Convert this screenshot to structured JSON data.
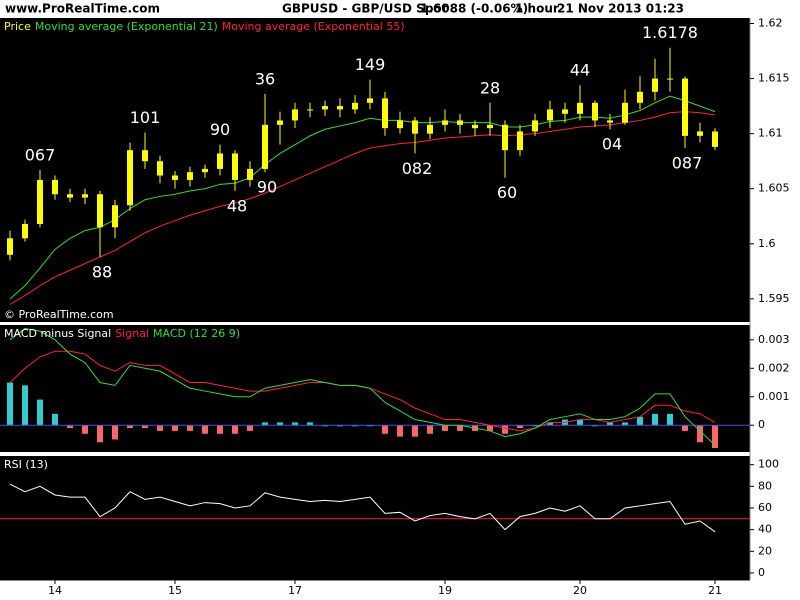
{
  "header": {
    "site": "www.ProRealTime.com",
    "instrument": "GBPUSD - GBP/USD Spot",
    "quote": "1.6088 (-0.06%)",
    "timeframe": "1 hour",
    "timestamp": "21 Nov 2013 01:23"
  },
  "watermark": "© ProRealTime.com",
  "chart_data": [
    {
      "type": "candlestick",
      "categories": [
        null,
        null,
        null,
        "14",
        null,
        null,
        null,
        null,
        null,
        null,
        null,
        "15",
        null,
        null,
        null,
        null,
        null,
        null,
        null,
        "17",
        null,
        null,
        null,
        null,
        null,
        null,
        null,
        null,
        null,
        "19",
        null,
        null,
        null,
        null,
        null,
        null,
        null,
        null,
        "20",
        null,
        null,
        null,
        null,
        null,
        null,
        null,
        null,
        "21"
      ],
      "series": [
        {
          "name": "Price",
          "color": "#ffff00",
          "open": [
            1.599,
            1.6005,
            1.6018,
            1.6058,
            1.6045,
            1.6042,
            1.6045,
            1.6015,
            1.6035,
            1.6085,
            1.6075,
            1.6062,
            1.6058,
            1.6065,
            1.6068,
            1.6082,
            1.6058,
            1.6068,
            1.6108,
            1.6112,
            1.6122,
            1.6122,
            1.6125,
            1.6122,
            1.6128,
            1.6132,
            1.6105,
            1.6112,
            1.61,
            1.6108,
            1.6112,
            1.6108,
            1.6105,
            1.6108,
            1.6085,
            1.6102,
            1.6112,
            1.6122,
            1.6118,
            1.6128,
            1.6112,
            1.611,
            1.6128,
            1.6138,
            1.615,
            1.615,
            1.6098,
            1.6102
          ],
          "high": [
            1.6012,
            1.6022,
            1.6067,
            1.6062,
            1.605,
            1.605,
            1.6048,
            1.604,
            1.6092,
            1.6101,
            1.608,
            1.6066,
            1.607,
            1.6072,
            1.609,
            1.6085,
            1.6075,
            1.6136,
            1.612,
            1.6128,
            1.6128,
            1.613,
            1.6132,
            1.6135,
            1.6149,
            1.6138,
            1.612,
            1.6115,
            1.6115,
            1.6122,
            1.6118,
            1.6112,
            1.6128,
            1.6112,
            1.6108,
            1.6118,
            1.613,
            1.6128,
            1.6144,
            1.613,
            1.6118,
            1.614,
            1.6152,
            1.6168,
            1.6178,
            1.6152,
            1.611,
            1.6105
          ],
          "low": [
            1.5985,
            1.6002,
            1.6015,
            1.604,
            1.6038,
            1.6036,
            1.5988,
            1.6005,
            1.603,
            1.6068,
            1.6055,
            1.605,
            1.6052,
            1.606,
            1.6062,
            1.6048,
            1.6052,
            1.6065,
            1.609,
            1.6105,
            1.6115,
            1.6116,
            1.6115,
            1.6118,
            1.6122,
            1.6098,
            1.61,
            1.6082,
            1.6095,
            1.6102,
            1.61,
            1.6098,
            1.6098,
            1.606,
            1.608,
            1.6098,
            1.6105,
            1.611,
            1.6112,
            1.6106,
            1.6104,
            1.6108,
            1.6122,
            1.613,
            1.6138,
            1.6087,
            1.6092,
            1.6085
          ],
          "close": [
            1.6005,
            1.6018,
            1.6058,
            1.6045,
            1.6042,
            1.6045,
            1.6015,
            1.6035,
            1.6085,
            1.6075,
            1.6062,
            1.6058,
            1.6065,
            1.6068,
            1.6082,
            1.6058,
            1.6068,
            1.6108,
            1.6112,
            1.6122,
            1.6122,
            1.6125,
            1.6122,
            1.6128,
            1.6132,
            1.6105,
            1.6112,
            1.61,
            1.6108,
            1.6112,
            1.6108,
            1.6105,
            1.6108,
            1.6085,
            1.6102,
            1.6112,
            1.6122,
            1.6118,
            1.6128,
            1.6112,
            1.611,
            1.6128,
            1.6138,
            1.615,
            1.615,
            1.6098,
            1.6102,
            1.6088
          ]
        },
        {
          "name": "Moving average (Exponential 21)",
          "color": "#33dd33",
          "values": [
            1.595,
            1.5962,
            1.5978,
            1.5995,
            1.6005,
            1.6012,
            1.6015,
            1.6022,
            1.6032,
            1.604,
            1.6043,
            1.6045,
            1.6048,
            1.605,
            1.6054,
            1.6055,
            1.606,
            1.6072,
            1.6082,
            1.609,
            1.6098,
            1.6104,
            1.6107,
            1.611,
            1.6114,
            1.6112,
            1.6112,
            1.611,
            1.611,
            1.6111,
            1.611,
            1.611,
            1.611,
            1.6106,
            1.6106,
            1.6108,
            1.6111,
            1.6112,
            1.6115,
            1.6115,
            1.6114,
            1.6117,
            1.6121,
            1.6128,
            1.6134,
            1.613,
            1.6125,
            1.612
          ]
        },
        {
          "name": "Moving average (Exponential 55)",
          "color": "#ff2233",
          "values": [
            1.5945,
            1.5953,
            1.5962,
            1.597,
            1.5976,
            1.5982,
            1.5988,
            1.5994,
            1.6002,
            1.601,
            1.6016,
            1.6021,
            1.6026,
            1.603,
            1.6034,
            1.6037,
            1.6041,
            1.6046,
            1.6052,
            1.6058,
            1.6064,
            1.607,
            1.6076,
            1.6082,
            1.6087,
            1.6089,
            1.6091,
            1.6092,
            1.6094,
            1.6096,
            1.6097,
            1.6098,
            1.6099,
            1.6098,
            1.6099,
            1.61,
            1.6102,
            1.6104,
            1.6106,
            1.6107,
            1.6108,
            1.611,
            1.6112,
            1.6115,
            1.6119,
            1.612,
            1.6119,
            1.6117
          ]
        }
      ],
      "annotations": [
        "067",
        "101",
        "90",
        "36",
        "149",
        "28",
        "44",
        "1.6178",
        "88",
        "48",
        "90",
        "082",
        "60",
        "04",
        "087"
      ],
      "ylim": [
        1.5929,
        1.6205
      ],
      "yticks": [
        1.595,
        1.6,
        1.605,
        1.61,
        1.615,
        1.62
      ]
    },
    {
      "type": "macd",
      "series": [
        {
          "name": "MACD minus Signal",
          "color": "#ffffff",
          "up_color": "#33cccc",
          "down_color": "#ff6666",
          "values": [
            0.0015,
            0.0014,
            0.0009,
            0.0004,
            -0.0001,
            -0.0003,
            -0.0006,
            -0.0005,
            -0.0001,
            -0.0001,
            -0.0002,
            -0.0002,
            -0.0002,
            -0.0003,
            -0.0003,
            -0.0003,
            -0.0002,
            0.0001,
            0.0001,
            0.0001,
            0.0001,
            0,
            0,
            0,
            0,
            -0.0003,
            -0.0004,
            -0.0004,
            -0.0003,
            -0.0002,
            -0.0002,
            -0.0002,
            -0.0002,
            -0.0003,
            -0.0001,
            0,
            0.0001,
            0.0002,
            0.0002,
            0,
            0.0001,
            0.0001,
            0.0003,
            0.0004,
            0.0004,
            -0.0002,
            -0.0006,
            -0.0008
          ]
        },
        {
          "name": "Signal",
          "color": "#ff2233",
          "values": [
            0.0015,
            0.002,
            0.0024,
            0.0026,
            0.0026,
            0.0025,
            0.0021,
            0.0019,
            0.0022,
            0.0021,
            0.0021,
            0.0018,
            0.0015,
            0.0015,
            0.0014,
            0.0013,
            0.0012,
            0.0012,
            0.0013,
            0.0014,
            0.0015,
            0.0015,
            0.0014,
            0.0014,
            0.0013,
            0.0011,
            0.0009,
            0.0006,
            0.0004,
            0.0002,
            0.0002,
            0.0001,
            0,
            -0.0001,
            -0.0002,
            -0.0001,
            0.0001,
            0.0001,
            0.0002,
            0.0002,
            0.0001,
            0.0002,
            0.0003,
            0.0007,
            0.0007,
            0.0005,
            0.0004,
            0.0001
          ]
        },
        {
          "name": "MACD (12 26 9)",
          "color": "#33dd33",
          "values": [
            0.003,
            0.0034,
            0.0033,
            0.003,
            0.0025,
            0.0022,
            0.0015,
            0.0014,
            0.0021,
            0.002,
            0.0019,
            0.0016,
            0.0013,
            0.0012,
            0.0011,
            0.001,
            0.001,
            0.0013,
            0.0014,
            0.0015,
            0.0016,
            0.0015,
            0.0014,
            0.0014,
            0.0013,
            0.0008,
            0.0005,
            0.0002,
            0.0001,
            0,
            0,
            -0.0001,
            -0.0002,
            -0.0004,
            -0.0003,
            -0.0001,
            0.0002,
            0.0003,
            0.0004,
            0.0002,
            0.0002,
            0.0003,
            0.0006,
            0.0011,
            0.0011,
            0.0003,
            -0.0002,
            -0.0007
          ]
        }
      ],
      "ylim": [
        -0.00094,
        0.00352
      ],
      "yticks": [
        0,
        0.001,
        0.002,
        0.003
      ]
    },
    {
      "type": "line",
      "series": [
        {
          "name": "RSI (13)",
          "color": "#ffffff",
          "values": [
            82,
            75,
            80,
            72,
            70,
            70,
            52,
            60,
            75,
            68,
            70,
            66,
            62,
            65,
            64,
            60,
            62,
            74,
            70,
            68,
            66,
            67,
            66,
            68,
            70,
            55,
            56,
            48,
            53,
            55,
            52,
            50,
            55,
            40,
            52,
            55,
            60,
            57,
            62,
            50,
            50,
            60,
            62,
            64,
            66,
            45,
            48,
            38
          ]
        }
      ],
      "ref_line": 50,
      "ref_color": "#ff2233",
      "ylim": [
        -6.5,
        108
      ],
      "yticks": [
        0,
        20,
        40,
        60,
        80,
        100
      ]
    }
  ]
}
